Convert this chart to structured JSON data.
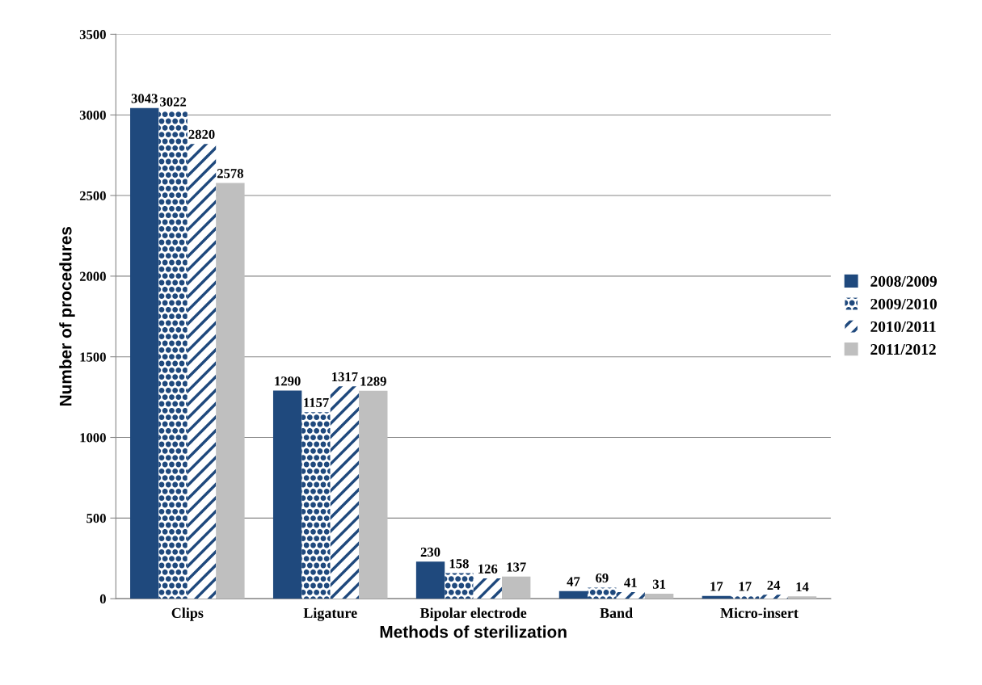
{
  "chart_data": {
    "type": "bar",
    "xlabel": "Methods of sterilization",
    "ylabel": "Number of procedures",
    "categories": [
      "Clips",
      "Ligature",
      "Bipolar electrode",
      "Band",
      "Micro-insert"
    ],
    "series": [
      {
        "name": "2008/2009",
        "color": "#1f497d",
        "values": [
          3043,
          1290,
          230,
          47,
          17
        ]
      },
      {
        "name": "2009/2010",
        "color": "#1f497d",
        "values": [
          3022,
          1157,
          158,
          69,
          17
        ]
      },
      {
        "name": "2010/2011",
        "color": "#1f497d",
        "values": [
          2820,
          1317,
          126,
          41,
          24
        ]
      },
      {
        "name": "2011/2012",
        "color": "#bfbfbf",
        "values": [
          2578,
          1289,
          137,
          31,
          14
        ]
      }
    ],
    "ylim": [
      0,
      3500
    ],
    "yticks": [
      0,
      500,
      1000,
      1500,
      2000,
      2500,
      3000,
      3500
    ],
    "grid": "y",
    "legend": "right",
    "data_labels": true
  }
}
